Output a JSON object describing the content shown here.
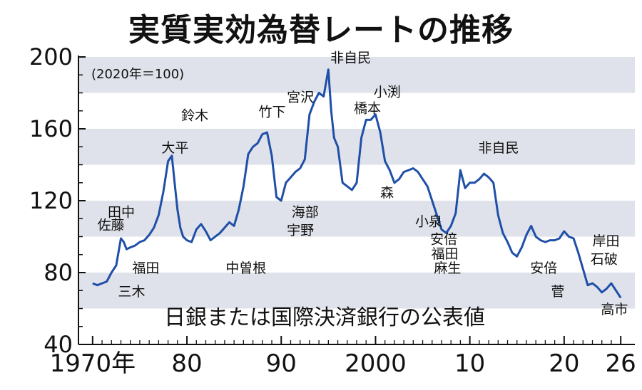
{
  "chart_data": {
    "type": "line",
    "title": "実質実効為替レートの推移",
    "subtitle": "(2020年＝100)",
    "source": "日銀または国際決済銀行の公表値",
    "ylim": [
      40,
      200
    ],
    "yticks": [
      40,
      80,
      120,
      160,
      200
    ],
    "xlim": [
      1968.5,
      2027.5
    ],
    "xticks": [
      {
        "value": 1970,
        "label": "1970年"
      },
      {
        "value": 1980,
        "label": "80"
      },
      {
        "value": 1990,
        "label": "90"
      },
      {
        "value": 2000,
        "label": "2000"
      },
      {
        "value": 2010,
        "label": "10"
      },
      {
        "value": 2020,
        "label": "20"
      },
      {
        "value": 2026,
        "label": "26"
      }
    ],
    "shaded_bands": [
      [
        60,
        80
      ],
      [
        100,
        120
      ],
      [
        140,
        160
      ],
      [
        180,
        200
      ]
    ],
    "line_color": "#1f4fa8",
    "band_color": "#dfe2ea",
    "series": [
      {
        "name": "実質実効為替レート",
        "x": [
          1970,
          1970.5,
          1971,
          1971.5,
          1972,
          1972.5,
          1973,
          1973.3,
          1973.6,
          1974,
          1974.5,
          1975,
          1975.5,
          1976,
          1976.5,
          1977,
          1977.5,
          1978,
          1978.4,
          1978.7,
          1979,
          1979.3,
          1979.6,
          1980,
          1980.5,
          1981,
          1981.5,
          1982,
          1982.5,
          1983,
          1983.5,
          1984,
          1984.5,
          1985,
          1985.5,
          1986,
          1986.5,
          1987,
          1987.5,
          1988,
          1988.5,
          1989,
          1989.5,
          1990,
          1990.5,
          1991,
          1991.5,
          1992,
          1992.5,
          1993,
          1993.5,
          1994,
          1994.5,
          1995,
          1995.3,
          1995.6,
          1996,
          1996.5,
          1997,
          1997.5,
          1998,
          1998.5,
          1999,
          1999.5,
          2000,
          2000.5,
          2001,
          2001.5,
          2002,
          2002.5,
          2003,
          2003.5,
          2004,
          2004.5,
          2005,
          2005.5,
          2006,
          2006.5,
          2007,
          2007.5,
          2008,
          2008.5,
          2009,
          2009.5,
          2010,
          2010.5,
          2011,
          2011.5,
          2012,
          2012.5,
          2013,
          2013.5,
          2014,
          2014.5,
          2015,
          2015.5,
          2016,
          2016.5,
          2017,
          2017.5,
          2018,
          2018.5,
          2019,
          2019.5,
          2020,
          2020.5,
          2021,
          2021.5,
          2022,
          2022.5,
          2023,
          2023.5,
          2024,
          2024.5,
          2025,
          2025.5,
          2026
        ],
        "values": [
          74,
          73,
          74,
          75,
          80,
          84,
          99,
          97,
          93,
          94,
          95,
          97,
          98,
          101,
          105,
          112,
          125,
          142,
          145,
          130,
          115,
          105,
          100,
          98,
          97,
          104,
          107,
          103,
          98,
          100,
          102,
          105,
          108,
          106,
          115,
          128,
          146,
          150,
          152,
          157,
          158,
          145,
          122,
          120,
          130,
          133,
          136,
          138,
          143,
          168,
          175,
          180,
          178,
          193,
          170,
          155,
          150,
          130,
          128,
          126,
          130,
          155,
          165,
          165,
          168,
          158,
          142,
          137,
          130,
          132,
          136,
          137,
          138,
          136,
          132,
          128,
          120,
          112,
          104,
          102,
          106,
          113,
          137,
          127,
          130,
          130,
          132,
          135,
          133,
          130,
          112,
          102,
          97,
          91,
          89,
          94,
          101,
          106,
          100,
          98,
          97,
          98,
          98,
          99,
          103,
          100,
          99,
          91,
          82,
          73,
          74,
          72,
          69,
          71,
          74,
          70,
          66
        ]
      }
    ],
    "annotations": [
      {
        "text": "佐藤",
        "year": 1970.5,
        "value": 104
      },
      {
        "text": "田中",
        "year": 1971.6,
        "value": 111
      },
      {
        "text": "三木",
        "year": 1972.7,
        "value": 67
      },
      {
        "text": "福田",
        "year": 1974.2,
        "value": 80
      },
      {
        "text": "大平",
        "year": 1977.3,
        "value": 147
      },
      {
        "text": "鈴木",
        "year": 1979.4,
        "value": 165
      },
      {
        "text": "中曽根",
        "year": 1984.1,
        "value": 80
      },
      {
        "text": "竹下",
        "year": 1987.6,
        "value": 167
      },
      {
        "text": "宮沢",
        "year": 1990.6,
        "value": 175
      },
      {
        "text": "海部",
        "year": 1991.1,
        "value": 111
      },
      {
        "text": "宇野",
        "year": 1990.6,
        "value": 101
      },
      {
        "text": "非自民",
        "year": 1995.2,
        "value": 197
      },
      {
        "text": "小渕",
        "year": 1999.8,
        "value": 178
      },
      {
        "text": "橋本",
        "year": 1997.7,
        "value": 169
      },
      {
        "text": "森",
        "year": 2000.5,
        "value": 122
      },
      {
        "text": "小泉",
        "year": 2004.2,
        "value": 106
      },
      {
        "text": "安倍",
        "year": 2005.8,
        "value": 96
      },
      {
        "text": "福田",
        "year": 2005.9,
        "value": 88
      },
      {
        "text": "麻生",
        "year": 2006.2,
        "value": 80
      },
      {
        "text": "非自民",
        "year": 2010.9,
        "value": 147
      },
      {
        "text": "安倍",
        "year": 2016.4,
        "value": 80
      },
      {
        "text": "菅",
        "year": 2018.6,
        "value": 67
      },
      {
        "text": "岸田",
        "year": 2023.0,
        "value": 95
      },
      {
        "text": "石破",
        "year": 2022.8,
        "value": 85
      },
      {
        "text": "高市",
        "year": 2023.9,
        "value": 57
      }
    ]
  }
}
